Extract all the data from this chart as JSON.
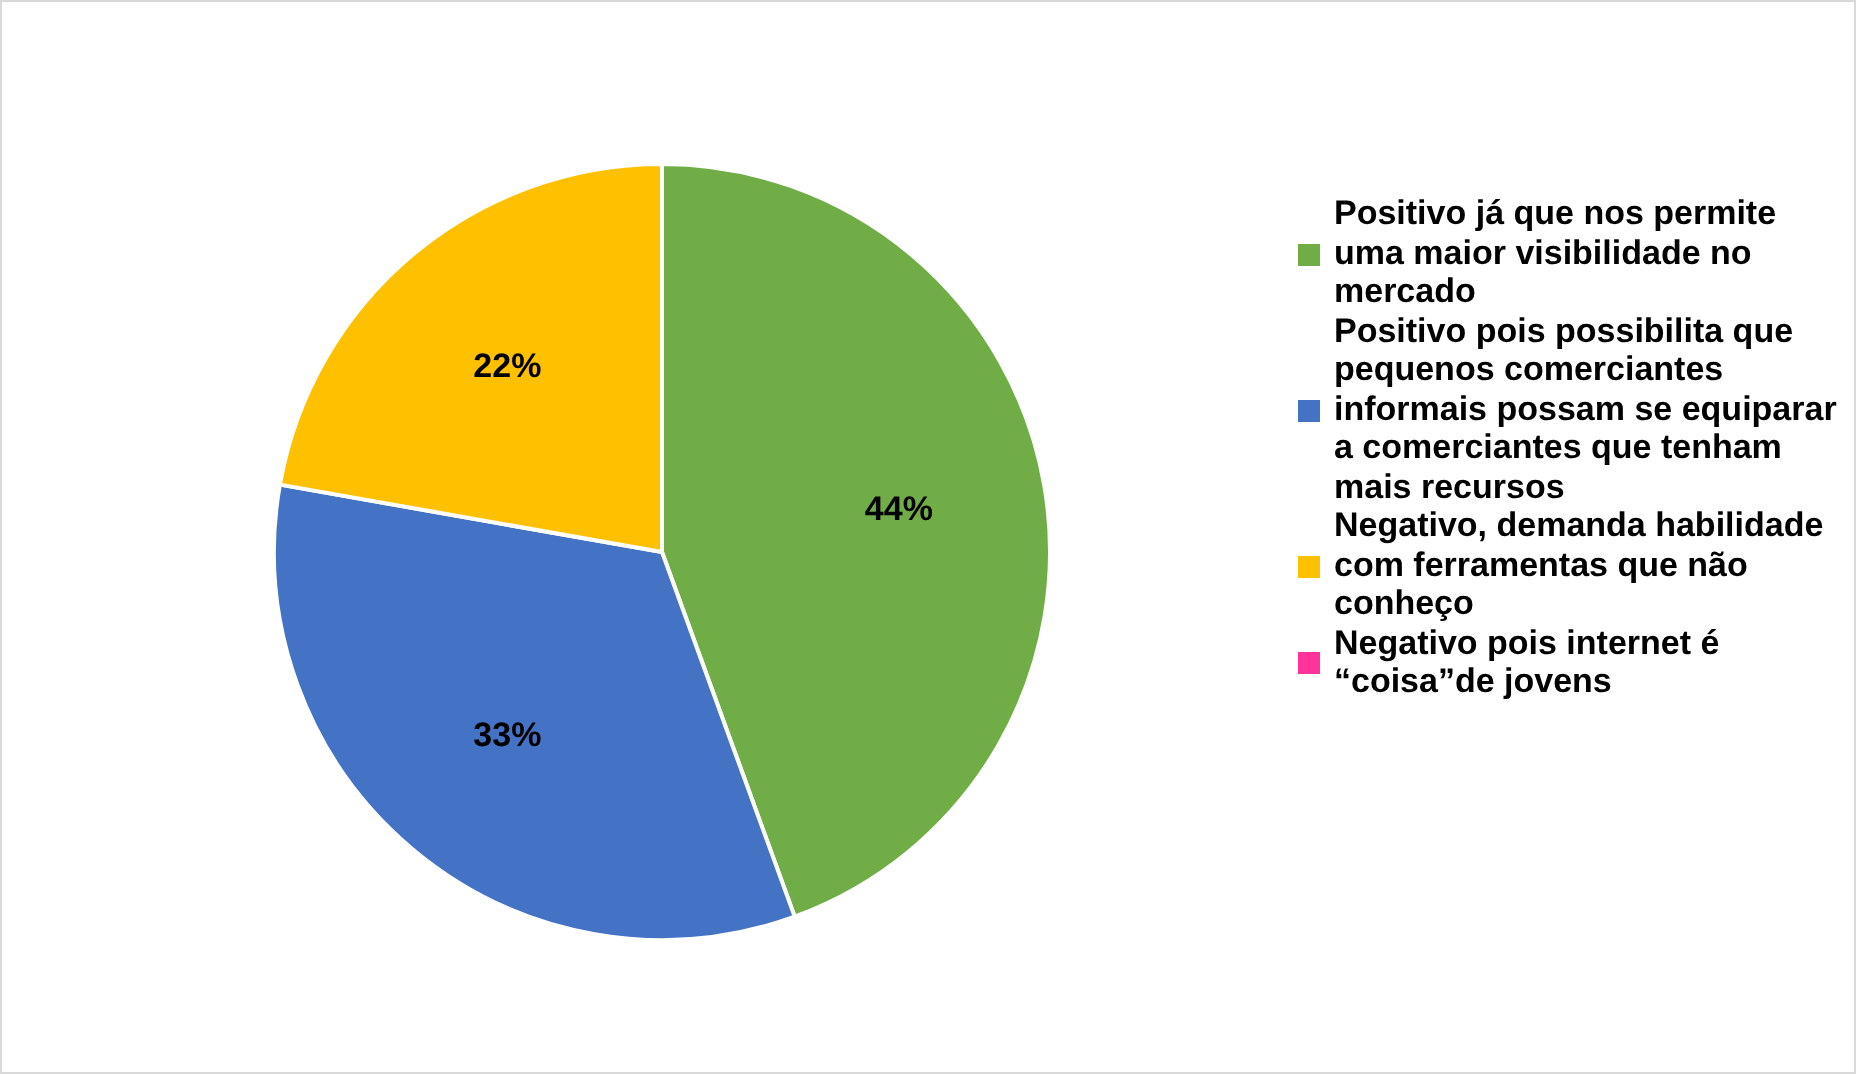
{
  "chart_data": {
    "type": "pie",
    "categories": [
      "Positivo já que nos permite uma maior visibilidade no mercado",
      "Positivo pois possibilita que pequenos comerciantes informais possam se equiparar a comerciantes que tenham mais recursos",
      "Negativo, demanda habilidade com ferramentas que não conheço",
      "Negativo pois internet é “coisa”de jovens"
    ],
    "values": [
      44,
      33,
      22,
      0
    ],
    "colors": [
      "#70ad47",
      "#4472c4",
      "#ffc000",
      "#ff3399"
    ],
    "value_labels": [
      "44%",
      "33%",
      "22%",
      null
    ],
    "legend": "right"
  }
}
